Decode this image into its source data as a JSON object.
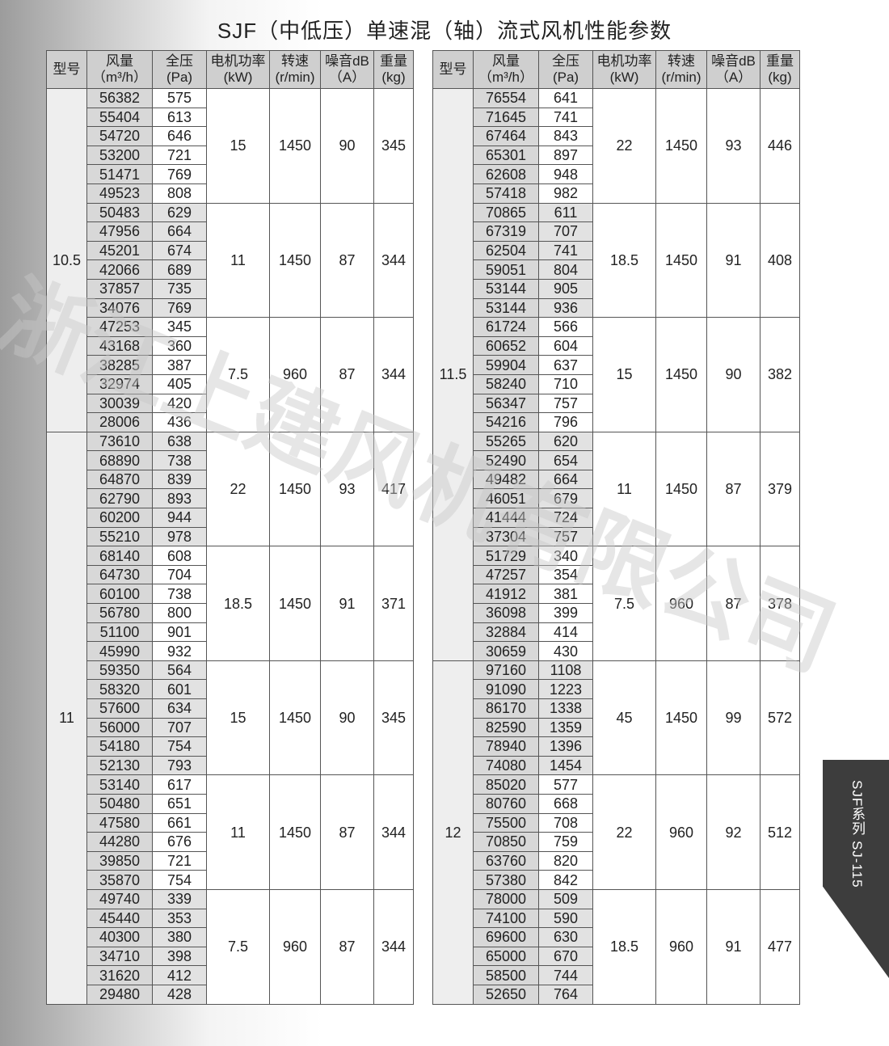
{
  "title": "SJF（中低压）单速混（轴）流式风机性能参数",
  "headers": [
    "型号",
    "风量\n（m³/h）",
    "全压\n(Pa)",
    "电机功率\n(kW)",
    "转速\n(r/min)",
    "噪音dB\n（A）",
    "重量\n(kg)"
  ],
  "side_tab": "SJF系列  SJ-115",
  "watermark": "浙江上建风机有限公司",
  "tables": [
    {
      "groups": [
        {
          "model": "10.5",
          "blocks": [
            {
              "power": "15",
              "speed": "1450",
              "noise": "90",
              "weight": "345",
              "rows": [
                [
                  "56382",
                  "575"
                ],
                [
                  "55404",
                  "613"
                ],
                [
                  "54720",
                  "646"
                ],
                [
                  "53200",
                  "721"
                ],
                [
                  "51471",
                  "769"
                ],
                [
                  "49523",
                  "808"
                ]
              ]
            },
            {
              "power": "11",
              "speed": "1450",
              "noise": "87",
              "weight": "344",
              "rows": [
                [
                  "50483",
                  "629"
                ],
                [
                  "47956",
                  "664"
                ],
                [
                  "45201",
                  "674"
                ],
                [
                  "42066",
                  "689"
                ],
                [
                  "37857",
                  "735"
                ],
                [
                  "34076",
                  "769"
                ]
              ]
            },
            {
              "power": "7.5",
              "speed": "960",
              "noise": "87",
              "weight": "344",
              "rows": [
                [
                  "47253",
                  "345"
                ],
                [
                  "43168",
                  "360"
                ],
                [
                  "38285",
                  "387"
                ],
                [
                  "32974",
                  "405"
                ],
                [
                  "30039",
                  "420"
                ],
                [
                  "28006",
                  "436"
                ]
              ]
            }
          ]
        },
        {
          "model": "11",
          "blocks": [
            {
              "power": "22",
              "speed": "1450",
              "noise": "93",
              "weight": "417",
              "rows": [
                [
                  "73610",
                  "638"
                ],
                [
                  "68890",
                  "738"
                ],
                [
                  "64870",
                  "839"
                ],
                [
                  "62790",
                  "893"
                ],
                [
                  "60200",
                  "944"
                ],
                [
                  "55210",
                  "978"
                ]
              ]
            },
            {
              "power": "18.5",
              "speed": "1450",
              "noise": "91",
              "weight": "371",
              "rows": [
                [
                  "68140",
                  "608"
                ],
                [
                  "64730",
                  "704"
                ],
                [
                  "60100",
                  "738"
                ],
                [
                  "56780",
                  "800"
                ],
                [
                  "51100",
                  "901"
                ],
                [
                  "45990",
                  "932"
                ]
              ]
            },
            {
              "power": "15",
              "speed": "1450",
              "noise": "90",
              "weight": "345",
              "rows": [
                [
                  "59350",
                  "564"
                ],
                [
                  "58320",
                  "601"
                ],
                [
                  "57600",
                  "634"
                ],
                [
                  "56000",
                  "707"
                ],
                [
                  "54180",
                  "754"
                ],
                [
                  "52130",
                  "793"
                ]
              ]
            },
            {
              "power": "11",
              "speed": "1450",
              "noise": "87",
              "weight": "344",
              "rows": [
                [
                  "53140",
                  "617"
                ],
                [
                  "50480",
                  "651"
                ],
                [
                  "47580",
                  "661"
                ],
                [
                  "44280",
                  "676"
                ],
                [
                  "39850",
                  "721"
                ],
                [
                  "35870",
                  "754"
                ]
              ]
            },
            {
              "power": "7.5",
              "speed": "960",
              "noise": "87",
              "weight": "344",
              "rows": [
                [
                  "49740",
                  "339"
                ],
                [
                  "45440",
                  "353"
                ],
                [
                  "40300",
                  "380"
                ],
                [
                  "34710",
                  "398"
                ],
                [
                  "31620",
                  "412"
                ],
                [
                  "29480",
                  "428"
                ]
              ]
            }
          ]
        }
      ]
    },
    {
      "groups": [
        {
          "model": "11.5",
          "blocks": [
            {
              "power": "22",
              "speed": "1450",
              "noise": "93",
              "weight": "446",
              "rows": [
                [
                  "76554",
                  "641"
                ],
                [
                  "71645",
                  "741"
                ],
                [
                  "67464",
                  "843"
                ],
                [
                  "65301",
                  "897"
                ],
                [
                  "62608",
                  "948"
                ],
                [
                  "57418",
                  "982"
                ]
              ]
            },
            {
              "power": "18.5",
              "speed": "1450",
              "noise": "91",
              "weight": "408",
              "rows": [
                [
                  "70865",
                  "611"
                ],
                [
                  "67319",
                  "707"
                ],
                [
                  "62504",
                  "741"
                ],
                [
                  "59051",
                  "804"
                ],
                [
                  "53144",
                  "905"
                ],
                [
                  "53144",
                  "936"
                ]
              ]
            },
            {
              "power": "15",
              "speed": "1450",
              "noise": "90",
              "weight": "382",
              "rows": [
                [
                  "61724",
                  "566"
                ],
                [
                  "60652",
                  "604"
                ],
                [
                  "59904",
                  "637"
                ],
                [
                  "58240",
                  "710"
                ],
                [
                  "56347",
                  "757"
                ],
                [
                  "54216",
                  "796"
                ]
              ]
            },
            {
              "power": "11",
              "speed": "1450",
              "noise": "87",
              "weight": "379",
              "rows": [
                [
                  "55265",
                  "620"
                ],
                [
                  "52490",
                  "654"
                ],
                [
                  "49482",
                  "664"
                ],
                [
                  "46051",
                  "679"
                ],
                [
                  "41444",
                  "724"
                ],
                [
                  "37304",
                  "757"
                ]
              ]
            },
            {
              "power": "7.5",
              "speed": "960",
              "noise": "87",
              "weight": "378",
              "rows": [
                [
                  "51729",
                  "340"
                ],
                [
                  "47257",
                  "354"
                ],
                [
                  "41912",
                  "381"
                ],
                [
                  "36098",
                  "399"
                ],
                [
                  "32884",
                  "414"
                ],
                [
                  "30659",
                  "430"
                ]
              ]
            }
          ]
        },
        {
          "model": "12",
          "blocks": [
            {
              "power": "45",
              "speed": "1450",
              "noise": "99",
              "weight": "572",
              "rows": [
                [
                  "97160",
                  "1108"
                ],
                [
                  "91090",
                  "1223"
                ],
                [
                  "86170",
                  "1338"
                ],
                [
                  "82590",
                  "1359"
                ],
                [
                  "78940",
                  "1396"
                ],
                [
                  "74080",
                  "1454"
                ]
              ]
            },
            {
              "power": "22",
              "speed": "960",
              "noise": "92",
              "weight": "512",
              "rows": [
                [
                  "85020",
                  "577"
                ],
                [
                  "80760",
                  "668"
                ],
                [
                  "75500",
                  "708"
                ],
                [
                  "70850",
                  "759"
                ],
                [
                  "63760",
                  "820"
                ],
                [
                  "57380",
                  "842"
                ]
              ]
            },
            {
              "power": "18.5",
              "speed": "960",
              "noise": "91",
              "weight": "477",
              "rows": [
                [
                  "78000",
                  "509"
                ],
                [
                  "74100",
                  "590"
                ],
                [
                  "69600",
                  "630"
                ],
                [
                  "65000",
                  "670"
                ],
                [
                  "58500",
                  "744"
                ],
                [
                  "52650",
                  "764"
                ]
              ]
            }
          ]
        }
      ]
    }
  ]
}
